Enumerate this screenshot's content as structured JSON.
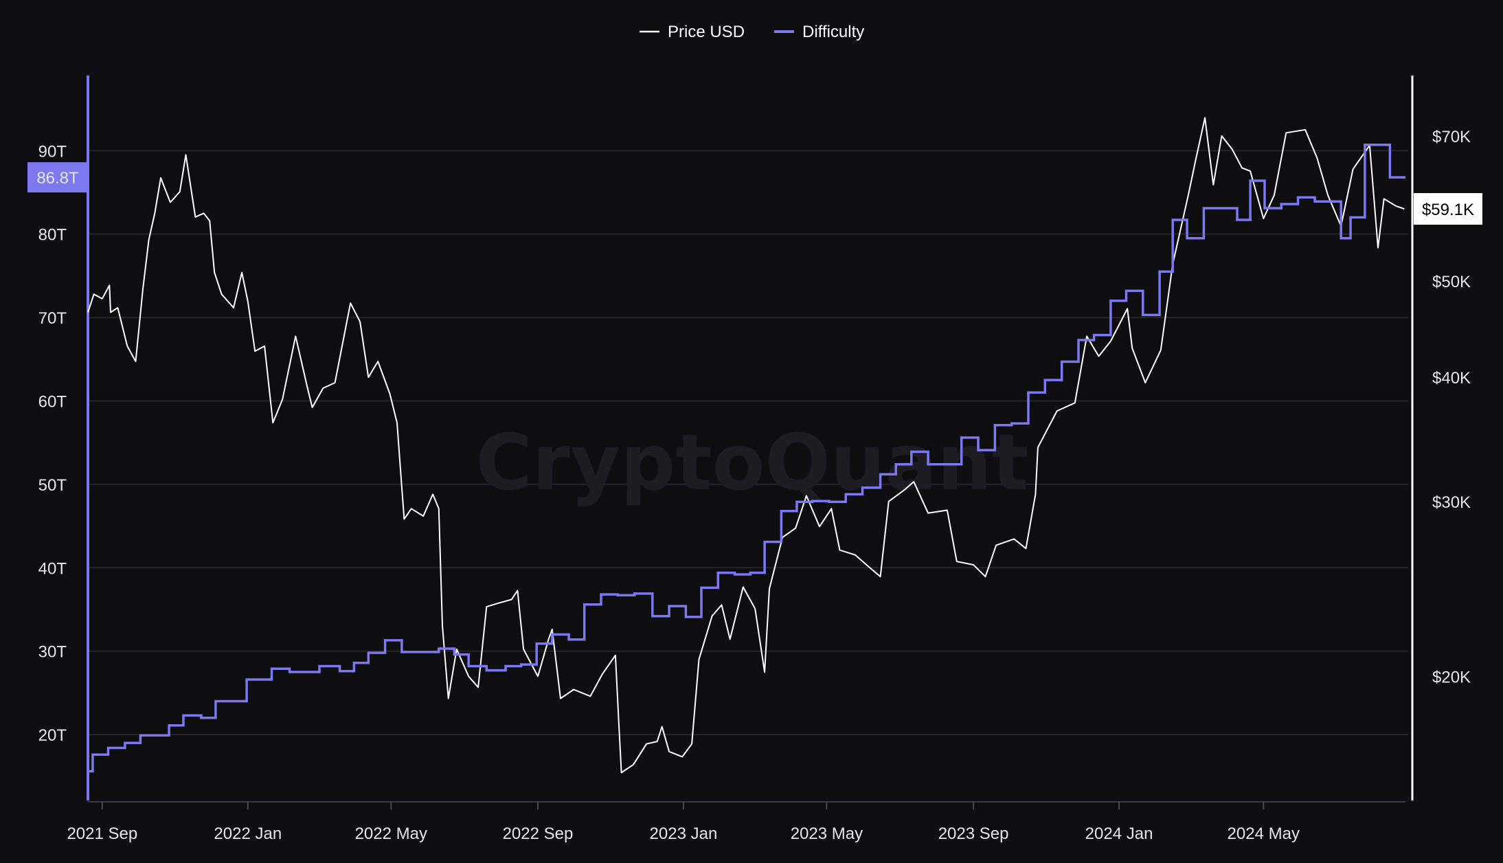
{
  "watermark": "CryptoQuant",
  "colors": {
    "background": "#0e0e11",
    "price": "#ffffff",
    "difficulty": "#7b78f0",
    "grid": "#2a2a30",
    "axis_text": "#e6e6ea"
  },
  "chart_data": {
    "type": "line",
    "title": "",
    "legend": {
      "placement": "top-center",
      "entries": [
        "Price USD",
        "Difficulty"
      ]
    },
    "grid": true,
    "x": {
      "type": "date",
      "range": [
        "2021-08-20",
        "2024-08-28"
      ],
      "ticks": [
        {
          "date": "2021-09-01",
          "label": "2021 Sep"
        },
        {
          "date": "2022-01-01",
          "label": "2022 Jan"
        },
        {
          "date": "2022-05-01",
          "label": "2022 May"
        },
        {
          "date": "2022-09-01",
          "label": "2022 Sep"
        },
        {
          "date": "2023-01-01",
          "label": "2023 Jan"
        },
        {
          "date": "2023-05-01",
          "label": "2023 May"
        },
        {
          "date": "2023-09-01",
          "label": "2023 Sep"
        },
        {
          "date": "2024-01-01",
          "label": "2024 Jan"
        },
        {
          "date": "2024-05-01",
          "label": "2024 May"
        }
      ]
    },
    "y_left": {
      "name": "Difficulty",
      "unit": "T",
      "scale": "linear",
      "range": [
        12.1,
        99.0
      ],
      "ticks": [
        {
          "value": 20,
          "label": "20T"
        },
        {
          "value": 30,
          "label": "30T"
        },
        {
          "value": 40,
          "label": "40T"
        },
        {
          "value": 50,
          "label": "50T"
        },
        {
          "value": 60,
          "label": "60T"
        },
        {
          "value": 70,
          "label": "70T"
        },
        {
          "value": 80,
          "label": "80T"
        },
        {
          "value": 90,
          "label": "90T"
        }
      ],
      "current_label": "86.8T",
      "current_value": 86.8
    },
    "y_right": {
      "name": "Price USD",
      "unit": "USD",
      "scale": "log",
      "range": [
        15000,
        80500
      ],
      "ticks": [
        {
          "value": 20000,
          "label": "$20K"
        },
        {
          "value": 30000,
          "label": "$30K"
        },
        {
          "value": 40000,
          "label": "$40K"
        },
        {
          "value": 50000,
          "label": "$50K"
        },
        {
          "value": 70000,
          "label": "$70K"
        }
      ],
      "current_label": "$59.1K",
      "current_value": 59100
    },
    "series": [
      {
        "name": "Price USD",
        "axis": "right",
        "points": [
          [
            "2021-08-20",
            46500
          ],
          [
            "2021-08-25",
            48500
          ],
          [
            "2021-09-01",
            48000
          ],
          [
            "2021-09-07",
            49500
          ],
          [
            "2021-09-08",
            46500
          ],
          [
            "2021-09-14",
            47000
          ],
          [
            "2021-09-22",
            43000
          ],
          [
            "2021-09-29",
            41500
          ],
          [
            "2021-10-05",
            49000
          ],
          [
            "2021-10-10",
            55000
          ],
          [
            "2021-10-15",
            58500
          ],
          [
            "2021-10-20",
            63500
          ],
          [
            "2021-10-28",
            60000
          ],
          [
            "2021-11-05",
            61500
          ],
          [
            "2021-11-10",
            67000
          ],
          [
            "2021-11-18",
            58000
          ],
          [
            "2021-11-25",
            58500
          ],
          [
            "2021-11-30",
            57500
          ],
          [
            "2021-12-04",
            51000
          ],
          [
            "2021-12-10",
            48500
          ],
          [
            "2021-12-20",
            47000
          ],
          [
            "2021-12-27",
            51000
          ],
          [
            "2022-01-01",
            47700
          ],
          [
            "2022-01-07",
            42500
          ],
          [
            "2022-01-15",
            43000
          ],
          [
            "2022-01-22",
            36000
          ],
          [
            "2022-01-30",
            38000
          ],
          [
            "2022-02-10",
            44000
          ],
          [
            "2022-02-20",
            39000
          ],
          [
            "2022-02-24",
            37300
          ],
          [
            "2022-03-05",
            39000
          ],
          [
            "2022-03-15",
            39500
          ],
          [
            "2022-03-28",
            47500
          ],
          [
            "2022-04-05",
            45500
          ],
          [
            "2022-04-12",
            40000
          ],
          [
            "2022-04-20",
            41500
          ],
          [
            "2022-04-30",
            38500
          ],
          [
            "2022-05-06",
            36000
          ],
          [
            "2022-05-10",
            31000
          ],
          [
            "2022-05-12",
            28800
          ],
          [
            "2022-05-18",
            29500
          ],
          [
            "2022-05-28",
            29000
          ],
          [
            "2022-06-05",
            30500
          ],
          [
            "2022-06-10",
            29500
          ],
          [
            "2022-06-13",
            22500
          ],
          [
            "2022-06-18",
            19000
          ],
          [
            "2022-06-25",
            21300
          ],
          [
            "2022-07-05",
            20000
          ],
          [
            "2022-07-13",
            19500
          ],
          [
            "2022-07-20",
            23500
          ],
          [
            "2022-07-30",
            23700
          ],
          [
            "2022-08-10",
            23900
          ],
          [
            "2022-08-15",
            24400
          ],
          [
            "2022-08-20",
            21300
          ],
          [
            "2022-09-01",
            20000
          ],
          [
            "2022-09-10",
            21800
          ],
          [
            "2022-09-13",
            22300
          ],
          [
            "2022-09-20",
            19000
          ],
          [
            "2022-10-01",
            19400
          ],
          [
            "2022-10-15",
            19100
          ],
          [
            "2022-10-25",
            20100
          ],
          [
            "2022-11-05",
            21000
          ],
          [
            "2022-11-08",
            17800
          ],
          [
            "2022-11-10",
            16000
          ],
          [
            "2022-11-20",
            16300
          ],
          [
            "2022-12-01",
            17100
          ],
          [
            "2022-12-10",
            17200
          ],
          [
            "2022-12-14",
            17800
          ],
          [
            "2022-12-20",
            16800
          ],
          [
            "2022-12-31",
            16600
          ],
          [
            "2023-01-08",
            17100
          ],
          [
            "2023-01-14",
            20800
          ],
          [
            "2023-01-25",
            23000
          ],
          [
            "2023-02-02",
            23600
          ],
          [
            "2023-02-09",
            21800
          ],
          [
            "2023-02-20",
            24600
          ],
          [
            "2023-03-02",
            23400
          ],
          [
            "2023-03-10",
            20200
          ],
          [
            "2023-03-14",
            24500
          ],
          [
            "2023-03-25",
            27600
          ],
          [
            "2023-04-05",
            28200
          ],
          [
            "2023-04-14",
            30400
          ],
          [
            "2023-04-25",
            28300
          ],
          [
            "2023-05-05",
            29500
          ],
          [
            "2023-05-12",
            26800
          ],
          [
            "2023-05-25",
            26500
          ],
          [
            "2023-06-05",
            25800
          ],
          [
            "2023-06-15",
            25200
          ],
          [
            "2023-06-22",
            30000
          ],
          [
            "2023-07-05",
            30800
          ],
          [
            "2023-07-13",
            31400
          ],
          [
            "2023-07-25",
            29200
          ],
          [
            "2023-08-10",
            29400
          ],
          [
            "2023-08-18",
            26100
          ],
          [
            "2023-09-01",
            25900
          ],
          [
            "2023-09-11",
            25200
          ],
          [
            "2023-09-20",
            27100
          ],
          [
            "2023-10-05",
            27500
          ],
          [
            "2023-10-15",
            26900
          ],
          [
            "2023-10-23",
            30500
          ],
          [
            "2023-10-25",
            34000
          ],
          [
            "2023-11-10",
            37000
          ],
          [
            "2023-11-25",
            37700
          ],
          [
            "2023-12-05",
            44000
          ],
          [
            "2023-12-15",
            42000
          ],
          [
            "2023-12-25",
            43500
          ],
          [
            "2024-01-08",
            46900
          ],
          [
            "2024-01-12",
            42800
          ],
          [
            "2024-01-23",
            39500
          ],
          [
            "2024-02-05",
            42600
          ],
          [
            "2024-02-15",
            52000
          ],
          [
            "2024-02-28",
            61000
          ],
          [
            "2024-03-05",
            66000
          ],
          [
            "2024-03-13",
            73000
          ],
          [
            "2024-03-20",
            62500
          ],
          [
            "2024-03-27",
            70000
          ],
          [
            "2024-04-05",
            67800
          ],
          [
            "2024-04-13",
            65000
          ],
          [
            "2024-04-20",
            64500
          ],
          [
            "2024-05-01",
            57800
          ],
          [
            "2024-05-10",
            61000
          ],
          [
            "2024-05-20",
            70500
          ],
          [
            "2024-06-05",
            71000
          ],
          [
            "2024-06-15",
            66500
          ],
          [
            "2024-06-24",
            61000
          ],
          [
            "2024-07-05",
            56800
          ],
          [
            "2024-07-15",
            64800
          ],
          [
            "2024-07-29",
            68500
          ],
          [
            "2024-08-05",
            54000
          ],
          [
            "2024-08-10",
            60500
          ],
          [
            "2024-08-20",
            59500
          ],
          [
            "2024-08-27",
            59100
          ]
        ]
      },
      {
        "name": "Difficulty",
        "axis": "left",
        "step": true,
        "points": [
          [
            "2021-08-20",
            15.6
          ],
          [
            "2021-08-24",
            17.6
          ],
          [
            "2021-09-06",
            18.4
          ],
          [
            "2021-09-20",
            19.0
          ],
          [
            "2021-10-03",
            19.9
          ],
          [
            "2021-10-27",
            21.1
          ],
          [
            "2021-11-08",
            22.3
          ],
          [
            "2021-11-23",
            22.0
          ],
          [
            "2021-12-05",
            24.0
          ],
          [
            "2021-12-31",
            26.6
          ],
          [
            "2022-01-21",
            27.9
          ],
          [
            "2022-02-05",
            27.5
          ],
          [
            "2022-03-02",
            28.2
          ],
          [
            "2022-03-19",
            27.6
          ],
          [
            "2022-03-31",
            28.6
          ],
          [
            "2022-04-12",
            29.8
          ],
          [
            "2022-04-26",
            31.3
          ],
          [
            "2022-05-10",
            29.9
          ],
          [
            "2022-06-10",
            30.3
          ],
          [
            "2022-06-23",
            29.6
          ],
          [
            "2022-07-05",
            28.2
          ],
          [
            "2022-07-20",
            27.7
          ],
          [
            "2022-08-05",
            28.2
          ],
          [
            "2022-08-18",
            28.4
          ],
          [
            "2022-08-31",
            30.9
          ],
          [
            "2022-09-13",
            32.0
          ],
          [
            "2022-09-27",
            31.4
          ],
          [
            "2022-10-10",
            35.6
          ],
          [
            "2022-10-24",
            36.8
          ],
          [
            "2022-11-07",
            36.7
          ],
          [
            "2022-11-21",
            36.9
          ],
          [
            "2022-12-06",
            34.2
          ],
          [
            "2022-12-20",
            35.4
          ],
          [
            "2023-01-03",
            34.1
          ],
          [
            "2023-01-16",
            37.6
          ],
          [
            "2023-01-30",
            39.4
          ],
          [
            "2023-02-13",
            39.2
          ],
          [
            "2023-02-26",
            39.4
          ],
          [
            "2023-03-10",
            43.1
          ],
          [
            "2023-03-24",
            46.8
          ],
          [
            "2023-04-06",
            47.9
          ],
          [
            "2023-04-19",
            48.0
          ],
          [
            "2023-05-03",
            47.9
          ],
          [
            "2023-05-17",
            48.8
          ],
          [
            "2023-05-31",
            49.6
          ],
          [
            "2023-06-15",
            51.2
          ],
          [
            "2023-06-28",
            52.4
          ],
          [
            "2023-07-11",
            53.9
          ],
          [
            "2023-07-25",
            52.4
          ],
          [
            "2023-08-08",
            52.4
          ],
          [
            "2023-08-22",
            55.6
          ],
          [
            "2023-09-05",
            54.1
          ],
          [
            "2023-09-19",
            57.1
          ],
          [
            "2023-10-03",
            57.3
          ],
          [
            "2023-10-17",
            61.0
          ],
          [
            "2023-10-31",
            62.5
          ],
          [
            "2023-11-14",
            64.7
          ],
          [
            "2023-11-28",
            67.3
          ],
          [
            "2023-12-11",
            67.9
          ],
          [
            "2023-12-25",
            72.0
          ],
          [
            "2024-01-07",
            73.2
          ],
          [
            "2024-01-21",
            70.3
          ],
          [
            "2024-02-04",
            75.5
          ],
          [
            "2024-02-15",
            81.7
          ],
          [
            "2024-02-27",
            79.5
          ],
          [
            "2024-03-12",
            83.1
          ],
          [
            "2024-03-27",
            83.1
          ],
          [
            "2024-04-09",
            81.7
          ],
          [
            "2024-04-20",
            86.4
          ],
          [
            "2024-05-02",
            83.1
          ],
          [
            "2024-05-16",
            83.6
          ],
          [
            "2024-05-30",
            84.4
          ],
          [
            "2024-06-13",
            83.9
          ],
          [
            "2024-06-27",
            83.9
          ],
          [
            "2024-07-05",
            79.5
          ],
          [
            "2024-07-13",
            82.0
          ],
          [
            "2024-07-25",
            90.7
          ],
          [
            "2024-08-10",
            90.7
          ],
          [
            "2024-08-15",
            86.8
          ],
          [
            "2024-08-28",
            86.8
          ]
        ]
      }
    ]
  }
}
